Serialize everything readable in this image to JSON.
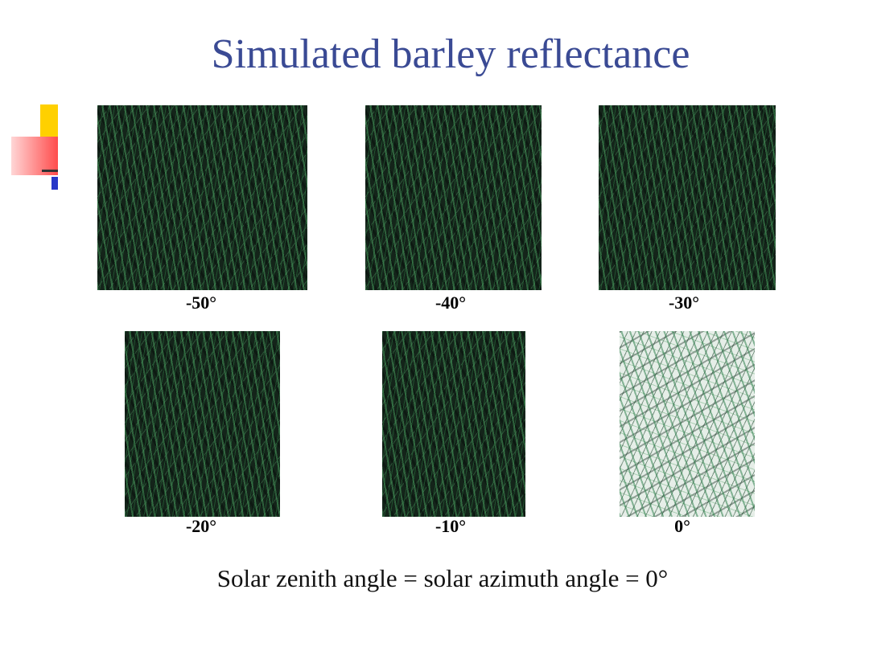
{
  "title": "Simulated barley reflectance",
  "panels": [
    {
      "label": "-50°"
    },
    {
      "label": "-40°"
    },
    {
      "label": "-30°"
    },
    {
      "label": "-20°"
    },
    {
      "label": "-10°"
    },
    {
      "label": "0°"
    }
  ],
  "caption": "Solar zenith angle = solar azimuth angle = 0°"
}
